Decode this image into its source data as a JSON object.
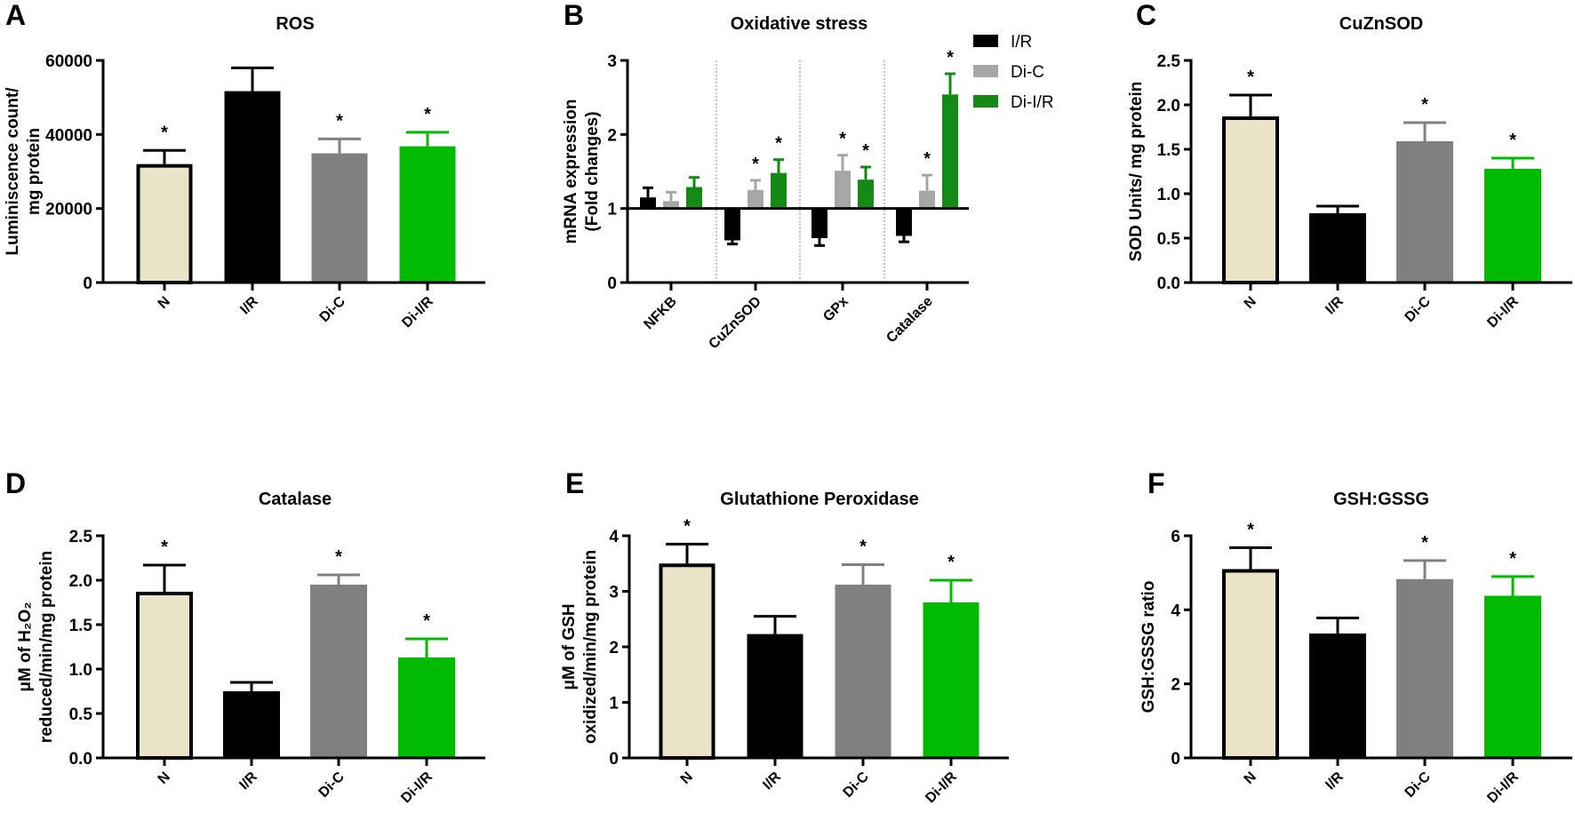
{
  "colors": {
    "N": "#ebe3c7",
    "IR": "#000000",
    "DiC": "#808080",
    "DiIR": "#00bb00",
    "B_IR": "#000000",
    "B_DiC": "#a6a6a6",
    "B_DiIR": "#138a13"
  },
  "chart_data": [
    {
      "panel": "A",
      "type": "bar",
      "title": "ROS",
      "ylabel": [
        "Luminiscence count/",
        "mg protein"
      ],
      "ylim": [
        0,
        60000
      ],
      "yticks": [
        "0",
        "20000",
        "40000",
        "60000"
      ],
      "ytick_values": [
        0,
        20000,
        40000,
        60000
      ],
      "categories": [
        "N",
        "I/R",
        "Di-C",
        "Di-I/R"
      ],
      "values": [
        32000,
        51700,
        34900,
        36800
      ],
      "error_upper": [
        35700,
        58000,
        38800,
        40600
      ],
      "significant": [
        true,
        false,
        true,
        true
      ],
      "significance_mark": "*"
    },
    {
      "panel": "B",
      "type": "bar",
      "title": "Oxidative stress",
      "ylabel": [
        "mRNA expression",
        "(Fold changes)"
      ],
      "ylim": [
        0,
        3
      ],
      "baseline": 1,
      "yticks": [
        "0",
        "1",
        "2",
        "3"
      ],
      "ytick_values": [
        0,
        1,
        2,
        3
      ],
      "categories": [
        "NFKB",
        "CuZnSOD",
        "GPx",
        "Catalase"
      ],
      "legend": [
        "I/R",
        "Di-C",
        "Di-I/R"
      ],
      "legend_position": "top-right",
      "series": [
        {
          "name": "I/R",
          "values": [
            1.15,
            0.57,
            0.6,
            0.63
          ],
          "error_end": [
            1.28,
            0.52,
            0.5,
            0.55
          ],
          "significant": [
            false,
            false,
            false,
            false
          ]
        },
        {
          "name": "Di-C",
          "values": [
            1.1,
            1.25,
            1.51,
            1.24
          ],
          "error_end": [
            1.22,
            1.38,
            1.72,
            1.45
          ],
          "significant": [
            false,
            true,
            true,
            true
          ]
        },
        {
          "name": "Di-I/R",
          "values": [
            1.29,
            1.48,
            1.39,
            2.54
          ],
          "error_end": [
            1.42,
            1.66,
            1.56,
            2.82
          ],
          "significant": [
            false,
            true,
            true,
            true
          ]
        }
      ],
      "significance_mark": "*"
    },
    {
      "panel": "C",
      "type": "bar",
      "title": "CuZnSOD",
      "ylabel": [
        "SOD Units/ mg protein"
      ],
      "ylim": [
        0,
        2.5
      ],
      "yticks": [
        "0.0",
        "0.5",
        "1.0",
        "1.5",
        "2.0",
        "2.5"
      ],
      "ytick_values": [
        0,
        0.5,
        1,
        1.5,
        2,
        2.5
      ],
      "categories": [
        "N",
        "I/R",
        "Di-C",
        "Di-I/R"
      ],
      "values": [
        1.87,
        0.78,
        1.59,
        1.28
      ],
      "error_upper": [
        2.11,
        0.86,
        1.8,
        1.4
      ],
      "significant": [
        true,
        false,
        true,
        true
      ],
      "significance_mark": "*"
    },
    {
      "panel": "D",
      "type": "bar",
      "title": "Catalase",
      "ylabel": [
        "μM of H₂O₂",
        "reduced/min/mg protein"
      ],
      "ylim": [
        0,
        2.5
      ],
      "yticks": [
        "0.0",
        "0.5",
        "1.0",
        "1.5",
        "2.0",
        "2.5"
      ],
      "ytick_values": [
        0,
        0.5,
        1,
        1.5,
        2,
        2.5
      ],
      "categories": [
        "N",
        "I/R",
        "Di-C",
        "Di-I/R"
      ],
      "values": [
        1.87,
        0.75,
        1.95,
        1.13
      ],
      "error_upper": [
        2.17,
        0.85,
        2.06,
        1.34
      ],
      "significant": [
        true,
        false,
        true,
        true
      ],
      "significance_mark": "*"
    },
    {
      "panel": "E",
      "type": "bar",
      "title": "Glutathione Peroxidase",
      "ylabel": [
        "μM of GSH",
        "oxidized/min/mg protein"
      ],
      "ylim": [
        0,
        4
      ],
      "yticks": [
        "0",
        "1",
        "2",
        "3",
        "4"
      ],
      "ytick_values": [
        0,
        1,
        2,
        3,
        4
      ],
      "categories": [
        "N",
        "I/R",
        "Di-C",
        "Di-I/R"
      ],
      "values": [
        3.5,
        2.23,
        3.12,
        2.8
      ],
      "error_upper": [
        3.85,
        2.55,
        3.48,
        3.2
      ],
      "significant": [
        true,
        false,
        true,
        true
      ],
      "significance_mark": "*"
    },
    {
      "panel": "F",
      "type": "bar",
      "title": "GSH:GSSG",
      "ylabel": [
        "GSH:GSSG ratio"
      ],
      "ylim": [
        0,
        6
      ],
      "yticks": [
        "0",
        "2",
        "4",
        "6"
      ],
      "ytick_values": [
        0,
        2,
        4,
        6
      ],
      "categories": [
        "N",
        "I/R",
        "Di-C",
        "Di-I/R"
      ],
      "values": [
        5.1,
        3.36,
        4.83,
        4.38
      ],
      "error_upper": [
        5.68,
        3.78,
        5.33,
        4.9
      ],
      "significant": [
        true,
        false,
        true,
        true
      ],
      "significance_mark": "*"
    }
  ]
}
